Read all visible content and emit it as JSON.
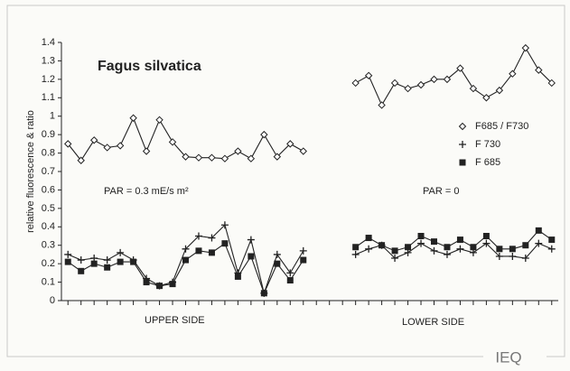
{
  "chart_data": {
    "type": "line",
    "title": "Fagus silvatica",
    "y_label": "relative fluorescence & ratio",
    "annotations": [
      "PAR = 0.3  mE/s m²",
      "PAR = 0",
      "UPPER SIDE",
      "LOWER SIDE"
    ],
    "logo": "IEQ",
    "categories": [
      null,
      null,
      null,
      null,
      null,
      null,
      null,
      null,
      null,
      null,
      null,
      null,
      null,
      null,
      null,
      null,
      null,
      null,
      null,
      null,
      null,
      null,
      null,
      null,
      null,
      null,
      null,
      null,
      null,
      null,
      null,
      null,
      null,
      null,
      null,
      null,
      null,
      null
    ],
    "series": [
      {
        "name": "F685 / F730",
        "color": "#222222",
        "marker": "diamond",
        "values": [
          0.85,
          0.76,
          0.87,
          0.83,
          0.84,
          0.99,
          0.81,
          0.98,
          0.86,
          0.78,
          0.775,
          0.775,
          0.77,
          0.81,
          0.77,
          0.9,
          0.78,
          0.85,
          0.81,
          null,
          null,
          null,
          1.18,
          1.22,
          1.06,
          1.18,
          1.15,
          1.17,
          1.2,
          1.2,
          1.26,
          1.15,
          1.1,
          1.14,
          1.23,
          1.37,
          1.25,
          1.18
        ]
      },
      {
        "name": "F 730",
        "color": "#222222",
        "marker": "plus",
        "values": [
          0.25,
          0.22,
          0.23,
          0.22,
          0.26,
          0.22,
          0.12,
          0.08,
          0.1,
          0.28,
          0.35,
          0.34,
          0.41,
          0.15,
          0.33,
          0.04,
          0.25,
          0.15,
          0.27,
          null,
          null,
          null,
          0.25,
          0.28,
          0.3,
          0.23,
          0.26,
          0.31,
          0.27,
          0.25,
          0.28,
          0.26,
          0.31,
          0.24,
          0.24,
          0.23,
          0.31,
          0.28
        ]
      },
      {
        "name": "F 685",
        "color": "#222222",
        "marker": "square",
        "values": [
          0.21,
          0.16,
          0.2,
          0.18,
          0.21,
          0.21,
          0.1,
          0.08,
          0.09,
          0.22,
          0.27,
          0.26,
          0.31,
          0.13,
          0.24,
          0.04,
          0.2,
          0.11,
          0.22,
          null,
          null,
          null,
          0.29,
          0.34,
          0.3,
          0.27,
          0.29,
          0.35,
          0.32,
          0.29,
          0.33,
          0.29,
          0.35,
          0.28,
          0.28,
          0.3,
          0.38,
          0.33
        ]
      }
    ],
    "ylim": [
      0,
      1.4
    ],
    "yticks": [
      0,
      0.1,
      0.2,
      0.3,
      0.4,
      0.5,
      0.6,
      0.7,
      0.8,
      0.9,
      1,
      1.1,
      1.2,
      1.3,
      1.4
    ],
    "legend": "right"
  }
}
